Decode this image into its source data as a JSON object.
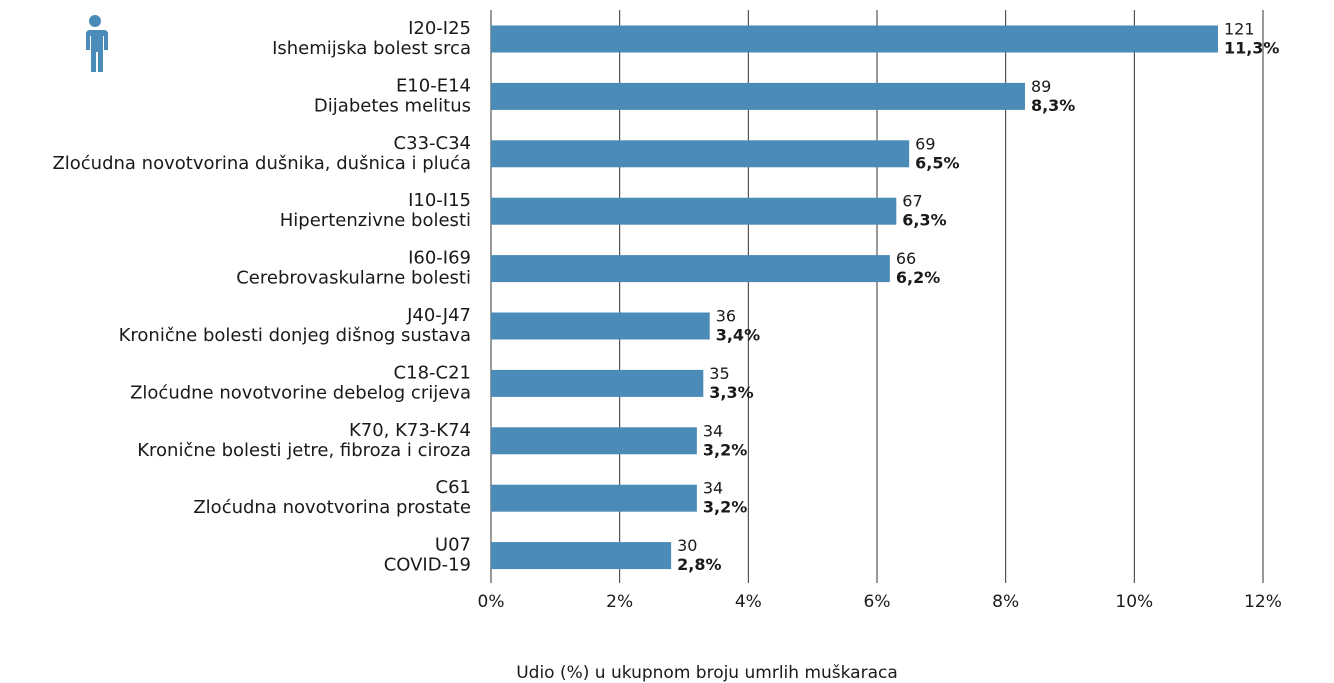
{
  "chart_data": {
    "type": "bar",
    "orientation": "horizontal",
    "categories": [
      [
        "I20-I25",
        "Ishemijska bolest srca"
      ],
      [
        "E10-E14",
        "Dijabetes melitus"
      ],
      [
        "C33-C34",
        "Zloćudna novotvorina dušnika, dušnica i pluća"
      ],
      [
        "I10-I15",
        "Hipertenzivne bolesti"
      ],
      [
        "I60-I69",
        "Cerebrovaskularne bolesti"
      ],
      [
        "J40-J47",
        "Kronične bolesti donjeg dišnog sustava"
      ],
      [
        "C18-C21",
        "Zloćudne novotvorine debelog crijeva"
      ],
      [
        "K70, K73-K74",
        "Kronične bolesti jetre, fibroza i ciroza"
      ],
      [
        "C61",
        "Zloćudna novotvorina prostate"
      ],
      [
        "U07",
        "COVID-19"
      ]
    ],
    "values": [
      11.3,
      8.3,
      6.5,
      6.3,
      6.2,
      3.4,
      3.3,
      3.2,
      3.2,
      2.8
    ],
    "value_labels": [
      "11,3%",
      "8,3%",
      "6,5%",
      "6,3%",
      "6,2%",
      "3,4%",
      "3,3%",
      "3,2%",
      "3,2%",
      "2,8%"
    ],
    "counts": [
      121,
      89,
      69,
      67,
      66,
      36,
      35,
      34,
      34,
      30
    ],
    "color": "#4a8bb7",
    "xlabel": "Udio (%) u ukupnom broju umrlih muškaraca",
    "xlim": [
      0,
      12
    ],
    "xticks": [
      {
        "value": 0,
        "label": "0%"
      },
      {
        "value": 2,
        "label": "2%"
      },
      {
        "value": 4,
        "label": "4%"
      },
      {
        "value": 6,
        "label": "6%"
      },
      {
        "value": 8,
        "label": "8%"
      },
      {
        "value": 10,
        "label": "10%"
      },
      {
        "value": 12,
        "label": "12%"
      }
    ],
    "grid": true
  }
}
